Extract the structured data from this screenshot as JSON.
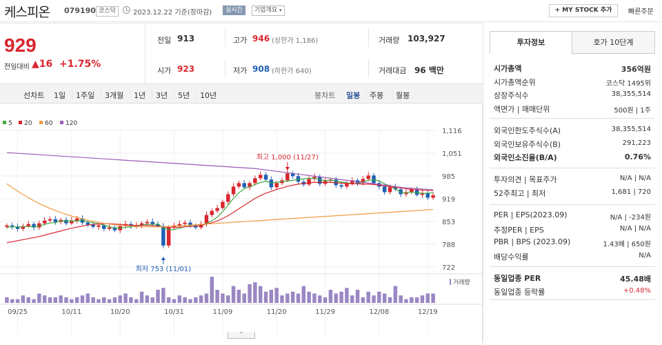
{
  "header": {
    "name": "케스피온",
    "code": "079190",
    "market": "코스닥",
    "date_text": "2023.12.22  기준(장마감)",
    "realtime_label": "실시간",
    "company_label": "기업개요",
    "mystock_label": "+ MY STOCK 추가",
    "quick_order": "빠른주문"
  },
  "price": {
    "current": "929",
    "diff_label": "전일대비",
    "diff": "▲16",
    "diff_pct": "+1.75%"
  },
  "stats": {
    "prev_label": "전일",
    "prev": "913",
    "high_label": "고가",
    "high": "946",
    "high_limit": "(상한가 1,186)",
    "volume_label": "거래량",
    "volume": "103,927",
    "open_label": "시가",
    "open": "923",
    "low_label": "저가",
    "low": "908",
    "low_limit": "(하한가 640)",
    "amount_label": "거래대금",
    "amount": "96 백만"
  },
  "range": {
    "line_label": "선차트",
    "line_items": [
      "1일",
      "1주일",
      "3개월",
      "1년",
      "3년",
      "5년",
      "10년"
    ],
    "candle_label": "봉차트",
    "candle_items": [
      "일봉",
      "주봉",
      "월봉"
    ],
    "active_candle": "일봉"
  },
  "legend": {
    "ma5": "5",
    "ma20": "20",
    "ma60": "60",
    "ma120": "120",
    "volume": "거래량"
  },
  "colors": {
    "up": "#d9262f",
    "down": "#1e5fb5",
    "ma5": "#3caa3c",
    "ma20": "#d9262f",
    "ma60": "#f09a3e",
    "ma120": "#9b59b6",
    "volume": "#9b87c4"
  },
  "chart_data": {
    "type": "candlestick",
    "y_ticks": [
      "1,116",
      "1,051",
      "985",
      "919",
      "853",
      "788",
      "722"
    ],
    "ylim": [
      722,
      1116
    ],
    "x_ticks": [
      "09/25",
      "10/11",
      "10/20",
      "10/31",
      "11/09",
      "11/20",
      "11/29",
      "12/08",
      "12/19"
    ],
    "annotation_high": "최고 1,000 (11/27)",
    "annotation_low": "최저 753 (11/01)",
    "closes": [
      842,
      838,
      832,
      840,
      846,
      836,
      848,
      856,
      860,
      852,
      858,
      848,
      856,
      862,
      850,
      844,
      838,
      842,
      832,
      836,
      828,
      840,
      846,
      838,
      842,
      848,
      852,
      846,
      840,
      784,
      836,
      842,
      846,
      850,
      842,
      836,
      846,
      872,
      884,
      892,
      910,
      932,
      954,
      964,
      952,
      964,
      978,
      988,
      974,
      952,
      964,
      972,
      992,
      984,
      968,
      960,
      976,
      982,
      962,
      970,
      974,
      958,
      954,
      962,
      972,
      964,
      976,
      986,
      964,
      954,
      938,
      952,
      946,
      932,
      938,
      946,
      930,
      936,
      922,
      929
    ],
    "ma5": [
      836,
      838,
      838,
      838,
      839,
      838,
      840,
      845,
      849,
      850,
      855,
      855,
      855,
      855,
      857,
      852,
      850,
      847,
      843,
      838,
      835,
      835,
      836,
      838,
      839,
      843,
      845,
      845,
      846,
      834,
      830,
      830,
      834,
      838,
      840,
      840,
      842,
      848,
      856,
      866,
      882,
      900,
      920,
      936,
      948,
      954,
      960,
      966,
      969,
      965,
      966,
      969,
      970,
      972,
      975,
      976,
      978,
      978,
      974,
      971,
      973,
      970,
      967,
      965,
      962,
      962,
      967,
      972,
      974,
      970,
      962,
      956,
      947,
      938,
      936,
      938,
      937,
      934,
      935,
      936
    ],
    "ma20": [
      792,
      795,
      798,
      801,
      804,
      807,
      810,
      814,
      818,
      822,
      826,
      830,
      834,
      837,
      840,
      843,
      845,
      846,
      847,
      847,
      846,
      845,
      844,
      843,
      842,
      842,
      842,
      841,
      840,
      838,
      836,
      836,
      837,
      838,
      839,
      840,
      842,
      846,
      850,
      855,
      862,
      870,
      880,
      890,
      900,
      910,
      920,
      928,
      935,
      940,
      946,
      950,
      955,
      958,
      961,
      963,
      965,
      966,
      966,
      966,
      966,
      965,
      964,
      963,
      962,
      962,
      961,
      961,
      960,
      958,
      956,
      954,
      952,
      950,
      948,
      946,
      945,
      944,
      943,
      942
    ],
    "ma60": [
      962,
      951,
      941,
      931,
      922,
      913,
      905,
      898,
      891,
      885,
      879,
      874,
      869,
      865,
      861,
      857,
      854,
      851,
      848,
      846,
      844,
      842,
      841,
      840,
      839,
      838,
      838,
      838,
      838,
      838,
      839,
      840,
      841,
      842,
      843,
      844,
      845,
      846,
      847,
      848,
      849,
      850,
      851,
      852,
      853,
      854,
      855,
      856,
      857,
      858,
      859,
      860,
      861,
      862,
      863,
      864,
      865,
      866,
      867,
      868,
      869,
      870,
      871,
      872,
      873,
      874,
      875,
      876,
      877,
      878,
      879,
      880,
      881,
      882,
      883,
      884,
      885,
      886,
      887,
      888
    ],
    "ma120": [
      1052,
      1051,
      1050,
      1049,
      1048,
      1047,
      1046,
      1045,
      1044,
      1043,
      1042,
      1041,
      1040,
      1039,
      1038,
      1037,
      1036,
      1035,
      1034,
      1033,
      1032,
      1031,
      1030,
      1029,
      1028,
      1027,
      1026,
      1025,
      1024,
      1023,
      1022,
      1021,
      1020,
      1019,
      1018,
      1017,
      1016,
      1015,
      1014,
      1013,
      1012,
      1011,
      1010,
      1009,
      1008,
      1007,
      1006,
      1004,
      1002,
      1000,
      998,
      996,
      994,
      992,
      990,
      988,
      986,
      984,
      982,
      980,
      978,
      976,
      974,
      972,
      970,
      968,
      966,
      964,
      962,
      960,
      958,
      956,
      954,
      952,
      950,
      949,
      948,
      947,
      946,
      945
    ],
    "volumes": [
      3,
      2,
      2,
      4,
      3,
      2,
      5,
      4,
      3,
      3,
      4,
      3,
      2,
      3,
      4,
      5,
      3,
      2,
      3,
      2,
      3,
      4,
      5,
      3,
      2,
      6,
      4,
      3,
      7,
      8,
      3,
      2,
      4,
      3,
      2,
      3,
      4,
      5,
      14,
      7,
      5,
      4,
      9,
      7,
      5,
      10,
      11,
      9,
      6,
      7,
      8,
      4,
      5,
      6,
      5,
      9,
      6,
      5,
      4,
      3,
      7,
      5,
      6,
      8,
      4,
      7,
      3,
      6,
      4,
      6,
      5,
      3,
      9,
      4,
      2,
      3,
      3,
      4,
      5,
      5
    ]
  },
  "right": {
    "tab1": "투자정보",
    "tab2": "호가 10단계",
    "rows": [
      {
        "label": "시가총액",
        "value": "356억원",
        "bold": true
      },
      {
        "label": "시가총액순위",
        "value": "코스닥  1495위"
      },
      {
        "label": "상장주식수",
        "value": "38,355,514"
      },
      {
        "label": "액면가 | 매매단위",
        "value": "500원 | 1주"
      }
    ],
    "rows2": [
      {
        "label": "외국인한도주식수(A)",
        "value": "38,355,514"
      },
      {
        "label": "외국인보유주식수(B)",
        "value": "291,223"
      },
      {
        "label": "외국인소진율(B/A)",
        "value": "0.76%",
        "bold": true
      }
    ],
    "rows3": [
      {
        "label": "투자의견 | 목표주가",
        "value": "N/A | N/A"
      },
      {
        "label": "52주최고 | 최저",
        "value": "1,681 | 720"
      }
    ],
    "rows4": [
      {
        "label": "PER | EPS(2023.09)",
        "value": "N/A | -234원"
      },
      {
        "label": "추정PER | EPS",
        "value": "N/A | N/A"
      },
      {
        "label": "PBR | BPS (2023.09)",
        "value": "1.43배 | 650원"
      },
      {
        "label": "배당수익률",
        "value": "N/A"
      }
    ],
    "rows5": [
      {
        "label": "동일업종 PER",
        "value": "45.48배",
        "bold": true
      },
      {
        "label": "동일업종 등락률",
        "value": "+0.48%",
        "red": true
      }
    ]
  },
  "bottom_handle": "⌃"
}
